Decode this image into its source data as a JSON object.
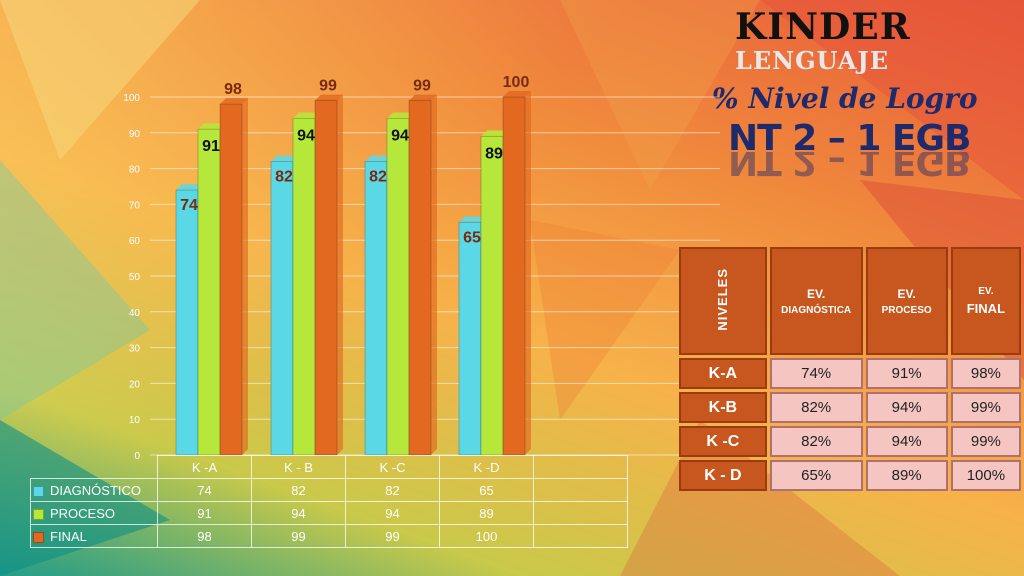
{
  "header": {
    "title": "KINDER",
    "subject": "LENGUAJE",
    "subtitle": "% Nivel de Logro",
    "level": "NT 2 – 1 EGB"
  },
  "colors": {
    "diagnostico": "#5ad8e6",
    "proceso": "#b5e83a",
    "final": "#e2691f"
  },
  "chart_data": {
    "type": "bar",
    "categories": [
      "K -A",
      "K - B",
      "K -C",
      "K -D"
    ],
    "series": [
      {
        "name": "DIAGNÓSTICO",
        "values": [
          74,
          82,
          82,
          65
        ]
      },
      {
        "name": "PROCESO",
        "values": [
          91,
          94,
          94,
          89
        ]
      },
      {
        "name": "FINAL",
        "values": [
          98,
          99,
          99,
          100
        ]
      }
    ],
    "ylim": [
      0,
      100
    ],
    "yticks": [
      0,
      10,
      20,
      30,
      40,
      50,
      60,
      70,
      80,
      90,
      100
    ],
    "grid": true,
    "legend": "data-table-below"
  },
  "summary_table": {
    "headers": {
      "niveles": "NIVELES",
      "diag_top": "EV.",
      "diag_bottom": "DIAGNÓSTICA",
      "proc_top": "EV.",
      "proc_bottom": "PROCESO",
      "final_top": "EV.",
      "final_bottom": "FINAL"
    },
    "rows": [
      {
        "level": "K-A",
        "diag": "74%",
        "proc": "91%",
        "final": "98%"
      },
      {
        "level": "K-B",
        "diag": "82%",
        "proc": "94%",
        "final": "99%"
      },
      {
        "level": "K -C",
        "diag": "82%",
        "proc": "94%",
        "final": "99%"
      },
      {
        "level": "K - D",
        "diag": "65%",
        "proc": "89%",
        "final": "100%"
      }
    ]
  }
}
